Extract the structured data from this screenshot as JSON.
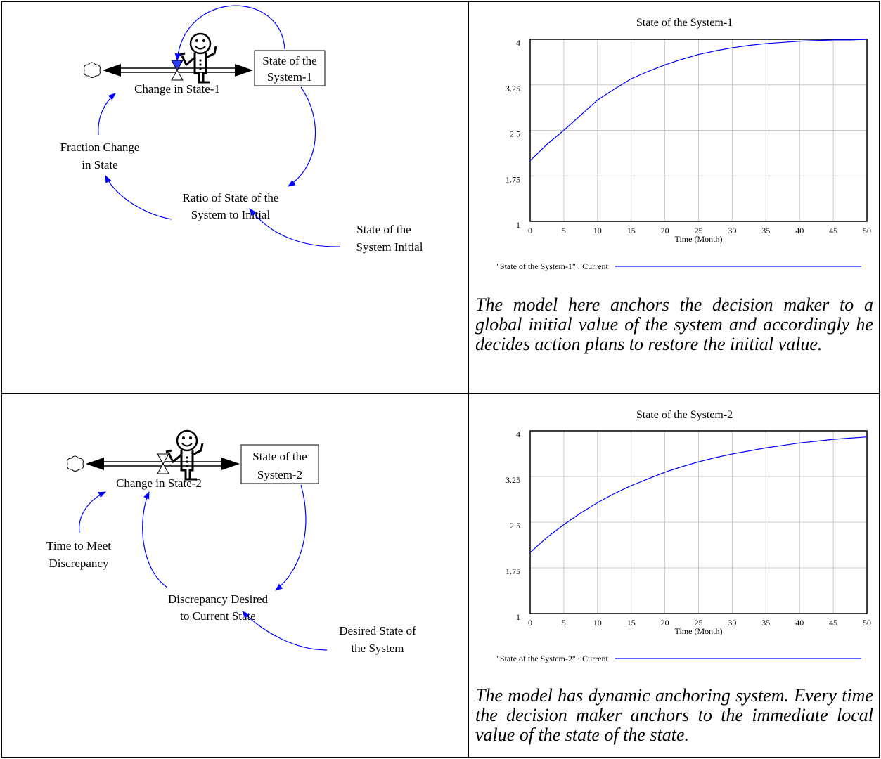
{
  "chart_data": [
    {
      "type": "line",
      "title": "State of the System-1",
      "x_label": "Time (Month)",
      "x": [
        0,
        2.5,
        5,
        7.5,
        10,
        12.5,
        15,
        17.5,
        20,
        22.5,
        25,
        27.5,
        30,
        32.5,
        35,
        37.5,
        40,
        42.5,
        45,
        47.5,
        50
      ],
      "xlim": [
        0,
        50
      ],
      "xticks": [
        0,
        5,
        10,
        15,
        20,
        25,
        30,
        35,
        40,
        45,
        50
      ],
      "ylim": [
        1,
        4
      ],
      "yticks": [
        1,
        1.75,
        2.5,
        3.25,
        4
      ],
      "grid": true,
      "series": [
        {
          "name": "\"State of the System-1\" : Current",
          "color": "#0000ff",
          "values": [
            2.0,
            2.27,
            2.5,
            2.75,
            3.0,
            3.18,
            3.35,
            3.47,
            3.58,
            3.67,
            3.75,
            3.81,
            3.86,
            3.9,
            3.93,
            3.95,
            3.97,
            3.98,
            3.99,
            3.99,
            4.0
          ]
        }
      ]
    },
    {
      "type": "line",
      "title": "State of the System-2",
      "x_label": "Time (Month)",
      "x": [
        0,
        2.5,
        5,
        7.5,
        10,
        12.5,
        15,
        17.5,
        20,
        22.5,
        25,
        27.5,
        30,
        32.5,
        35,
        37.5,
        40,
        42.5,
        45,
        47.5,
        50
      ],
      "xlim": [
        0,
        50
      ],
      "xticks": [
        0,
        5,
        10,
        15,
        20,
        25,
        30,
        35,
        40,
        45,
        50
      ],
      "ylim": [
        1,
        4
      ],
      "yticks": [
        1,
        1.75,
        2.5,
        3.25,
        4
      ],
      "grid": true,
      "series": [
        {
          "name": "\"State of the System-2\" : Current",
          "color": "#0000ff",
          "values": [
            2.0,
            2.25,
            2.46,
            2.65,
            2.82,
            2.97,
            3.1,
            3.21,
            3.32,
            3.41,
            3.49,
            3.56,
            3.62,
            3.67,
            3.72,
            3.76,
            3.8,
            3.83,
            3.86,
            3.88,
            3.9
          ]
        }
      ]
    }
  ],
  "diagrams": [
    {
      "stock": [
        "State of the",
        "System-1"
      ],
      "flow": "Change in State-1",
      "variables": [
        [
          "Fraction Change",
          "in State"
        ],
        [
          "Ratio of State of the",
          "System to Initial"
        ],
        [
          "State of the",
          "System Initial"
        ]
      ]
    },
    {
      "stock": [
        "State of the",
        "System-2"
      ],
      "flow": "Change in State-2",
      "variables": [
        [
          "Time to Meet",
          "Discrepancy"
        ],
        [
          "Discrepancy Desired",
          "to Current State"
        ],
        [
          "Desired State of",
          "the System"
        ]
      ]
    }
  ],
  "captions": [
    "The model here anchors the decision maker to a global initial value of the system and accordingly he decides action plans to restore the initial value.",
    "The model has dynamic anchoring system. Every time the decision maker anchors to the immediate local value of the state of the state."
  ]
}
